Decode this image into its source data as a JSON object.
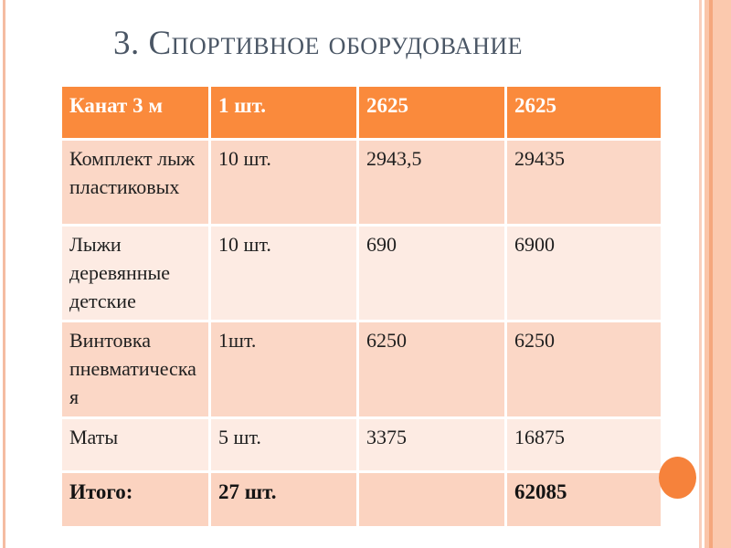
{
  "slide": {
    "title": "3. Спортивное оборудование"
  },
  "table": {
    "header_row": {
      "cells": [
        "Канат 3 м",
        "1 шт.",
        "2625",
        "2625"
      ]
    },
    "rows": [
      {
        "cells": [
          "Комплект лыж пластиковых",
          "10 шт.",
          "2943,5",
          "29435"
        ]
      },
      {
        "cells": [
          "Лыжи деревянные детские",
          "10 шт.",
          "690",
          "6900"
        ]
      },
      {
        "cells": [
          "Винтовка пневматическая",
          "1шт.",
          "6250",
          "6250"
        ]
      },
      {
        "cells": [
          "Маты",
          "5 шт.",
          "3375",
          "16875"
        ]
      },
      {
        "cells": [
          "Итого:",
          "27 шт.",
          "",
          "62085"
        ]
      }
    ]
  },
  "colors": {
    "header_bg": "#FA8A3C",
    "band_dark_bg": "#FBD7C6",
    "band_light_bg": "#FDEBE3",
    "total_row_bg": "#FBD3C0",
    "header_text": "#FFFFFF",
    "body_text": "#1F1F1F",
    "title_text": "#4A5665",
    "accent_circle": "#F6823B",
    "edge_stripe": "#F5BCA2"
  }
}
